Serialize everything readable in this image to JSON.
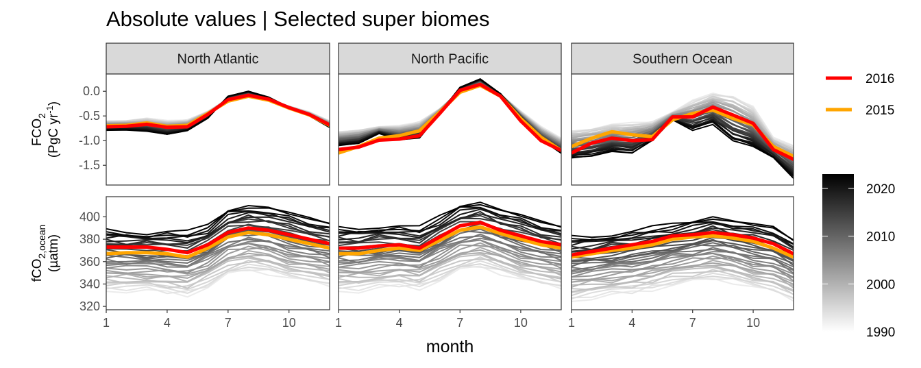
{
  "title": "Absolute values | Selected super biomes",
  "chart_data": {
    "type": "line",
    "title": "Absolute values | Selected super biomes",
    "xlabel": "month",
    "x": [
      1,
      2,
      3,
      4,
      5,
      6,
      7,
      8,
      9,
      10,
      11,
      12
    ],
    "x_ticks": [
      "1",
      "4",
      "7",
      "10"
    ],
    "x_tick_values": [
      1,
      4,
      7,
      10
    ],
    "xlim": [
      1,
      12
    ],
    "panels": [
      "North Atlantic",
      "North Pacific",
      "Southern Ocean"
    ],
    "rows": [
      {
        "ylabel": "FCO2 (PgC yr-1)",
        "ylabel_main": "FCO",
        "ylabel_sub": "2",
        "ylabel_unit_pre": "(PgC yr",
        "ylabel_unit_sup": "-1",
        "ylabel_unit_post": ")",
        "ylim": [
          -1.9,
          0.35
        ],
        "y_ticks": [
          "0.0",
          "-0.5",
          "-1.0",
          "-1.5"
        ],
        "y_tick_values": [
          0.0,
          -0.5,
          -1.0,
          -1.5
        ],
        "panels": [
          {
            "name": "North Atlantic",
            "series": [
              {
                "name": "2016",
                "values": [
                  -0.72,
                  -0.71,
                  -0.67,
                  -0.73,
                  -0.72,
                  -0.47,
                  -0.17,
                  -0.08,
                  -0.16,
                  -0.33,
                  -0.47,
                  -0.68
                ]
              },
              {
                "name": "2015",
                "values": [
                  -0.7,
                  -0.69,
                  -0.64,
                  -0.71,
                  -0.69,
                  -0.45,
                  -0.2,
                  -0.1,
                  -0.18,
                  -0.34,
                  -0.48,
                  -0.69
                ]
              }
            ],
            "spread": {
              "old": [
                -0.6,
                -0.59,
                -0.55,
                -0.6,
                -0.58,
                -0.4,
                -0.16,
                -0.08,
                -0.16,
                -0.3,
                -0.42,
                -0.6
              ],
              "new": [
                -0.79,
                -0.78,
                -0.8,
                -0.87,
                -0.8,
                -0.55,
                -0.1,
                0.0,
                -0.12,
                -0.33,
                -0.5,
                -0.73
              ]
            }
          },
          {
            "name": "North Pacific",
            "series": [
              {
                "name": "2016",
                "values": [
                  -1.18,
                  -1.13,
                  -0.99,
                  -0.97,
                  -0.9,
                  -0.45,
                  0.02,
                  0.14,
                  -0.1,
                  -0.6,
                  -1.0,
                  -1.2
                ]
              },
              {
                "name": "2015",
                "values": [
                  -1.25,
                  -1.12,
                  -0.95,
                  -0.9,
                  -0.8,
                  -0.42,
                  -0.02,
                  0.12,
                  -0.1,
                  -0.55,
                  -0.93,
                  -1.2
                ]
              }
            ],
            "spread": {
              "old": [
                -0.82,
                -0.78,
                -0.72,
                -0.7,
                -0.62,
                -0.35,
                0.0,
                0.14,
                -0.06,
                -0.4,
                -0.72,
                -0.95
              ],
              "new": [
                -1.1,
                -1.05,
                -0.85,
                -0.98,
                -0.95,
                -0.45,
                0.08,
                0.25,
                -0.05,
                -0.55,
                -0.98,
                -1.25
              ]
            }
          },
          {
            "name": "Southern Ocean",
            "series": [
              {
                "name": "2016",
                "values": [
                  -1.25,
                  -1.05,
                  -0.95,
                  -1.0,
                  -0.98,
                  -0.52,
                  -0.52,
                  -0.32,
                  -0.48,
                  -0.65,
                  -1.18,
                  -1.38
                ]
              },
              {
                "name": "2015",
                "values": [
                  -1.12,
                  -0.95,
                  -0.82,
                  -0.88,
                  -0.92,
                  -0.58,
                  -0.45,
                  -0.38,
                  -0.55,
                  -0.68,
                  -1.12,
                  -1.32
                ]
              }
            ],
            "spread": {
              "old": [
                -0.8,
                -0.75,
                -0.68,
                -0.65,
                -0.62,
                -0.42,
                -0.2,
                -0.05,
                -0.1,
                -0.3,
                -0.95,
                -1.1
              ],
              "new": [
                -1.35,
                -1.3,
                -1.2,
                -1.25,
                -1.0,
                -0.58,
                -0.78,
                -0.65,
                -1.0,
                -1.15,
                -1.35,
                -1.75
              ]
            }
          }
        ]
      },
      {
        "ylabel": "fCO2,ocean (µatm)",
        "ylabel_main": "fCO",
        "ylabel_sub": "2,ocean",
        "ylabel_unit_pre": "(µatm)",
        "ylabel_unit_sup": "",
        "ylabel_unit_post": "",
        "ylim": [
          317,
          418
        ],
        "y_ticks": [
          "400",
          "380",
          "360",
          "340",
          "320"
        ],
        "y_tick_values": [
          400,
          380,
          360,
          340,
          320
        ],
        "panels": [
          {
            "name": "North Atlantic",
            "series": [
              {
                "name": "2016",
                "values": [
                  373,
                  373,
                  373,
                  371,
                  368,
                  375,
                  386,
                  390,
                  388,
                  384,
                  380,
                  376
                ]
              },
              {
                "name": "2015",
                "values": [
                  367,
                  368,
                  368,
                  367,
                  364,
                  372,
                  382,
                  386,
                  384,
                  380,
                  376,
                  372
                ]
              }
            ],
            "spread": {
              "old": [
                334,
                334,
                334,
                332,
                330,
                338,
                348,
                352,
                350,
                346,
                342,
                338
              ],
              "new": [
                388,
                387,
                386,
                387,
                386,
                392,
                406,
                410,
                408,
                402,
                398,
                395
              ]
            }
          },
          {
            "name": "North Pacific",
            "series": [
              {
                "name": "2016",
                "values": [
                  372,
                  372,
                  374,
                  375,
                  372,
                  382,
                  392,
                  395,
                  388,
                  383,
                  378,
                  375
                ]
              },
              {
                "name": "2015",
                "values": [
                  367,
                  367,
                  370,
                  372,
                  370,
                  379,
                  388,
                  391,
                  385,
                  380,
                  375,
                  372
                ]
              }
            ],
            "spread": {
              "old": [
                334,
                334,
                336,
                338,
                336,
                344,
                352,
                355,
                350,
                345,
                340,
                336
              ],
              "new": [
                390,
                390,
                392,
                392,
                390,
                400,
                410,
                413,
                406,
                400,
                395,
                392
              ]
            }
          },
          {
            "name": "Southern Ocean",
            "series": [
              {
                "name": "2016",
                "values": [
                  366,
                  369,
                  372,
                  375,
                  378,
                  383,
                  384,
                  386,
                  384,
                  381,
                  376,
                  367
                ]
              },
              {
                "name": "2015",
                "values": [
                  364,
                  367,
                  370,
                  372,
                  375,
                  380,
                  382,
                  383,
                  381,
                  378,
                  372,
                  364
                ]
              }
            ],
            "spread": {
              "old": [
                325,
                328,
                330,
                332,
                335,
                340,
                342,
                344,
                342,
                338,
                333,
                325
              ],
              "new": [
                382,
                383,
                385,
                387,
                390,
                393,
                396,
                400,
                396,
                392,
                390,
                380
              ]
            }
          }
        ]
      }
    ],
    "highlight_legend": [
      {
        "label": "2016",
        "color": "#ff0000"
      },
      {
        "label": "2015",
        "color": "#ffa500"
      }
    ],
    "colorbar": {
      "ticks": [
        "2020",
        "2010",
        "2000",
        "1990"
      ],
      "tick_values": [
        2020,
        2010,
        2000,
        1990
      ],
      "range": [
        1990,
        2023
      ]
    },
    "gray_years": [
      1990,
      2023
    ]
  }
}
